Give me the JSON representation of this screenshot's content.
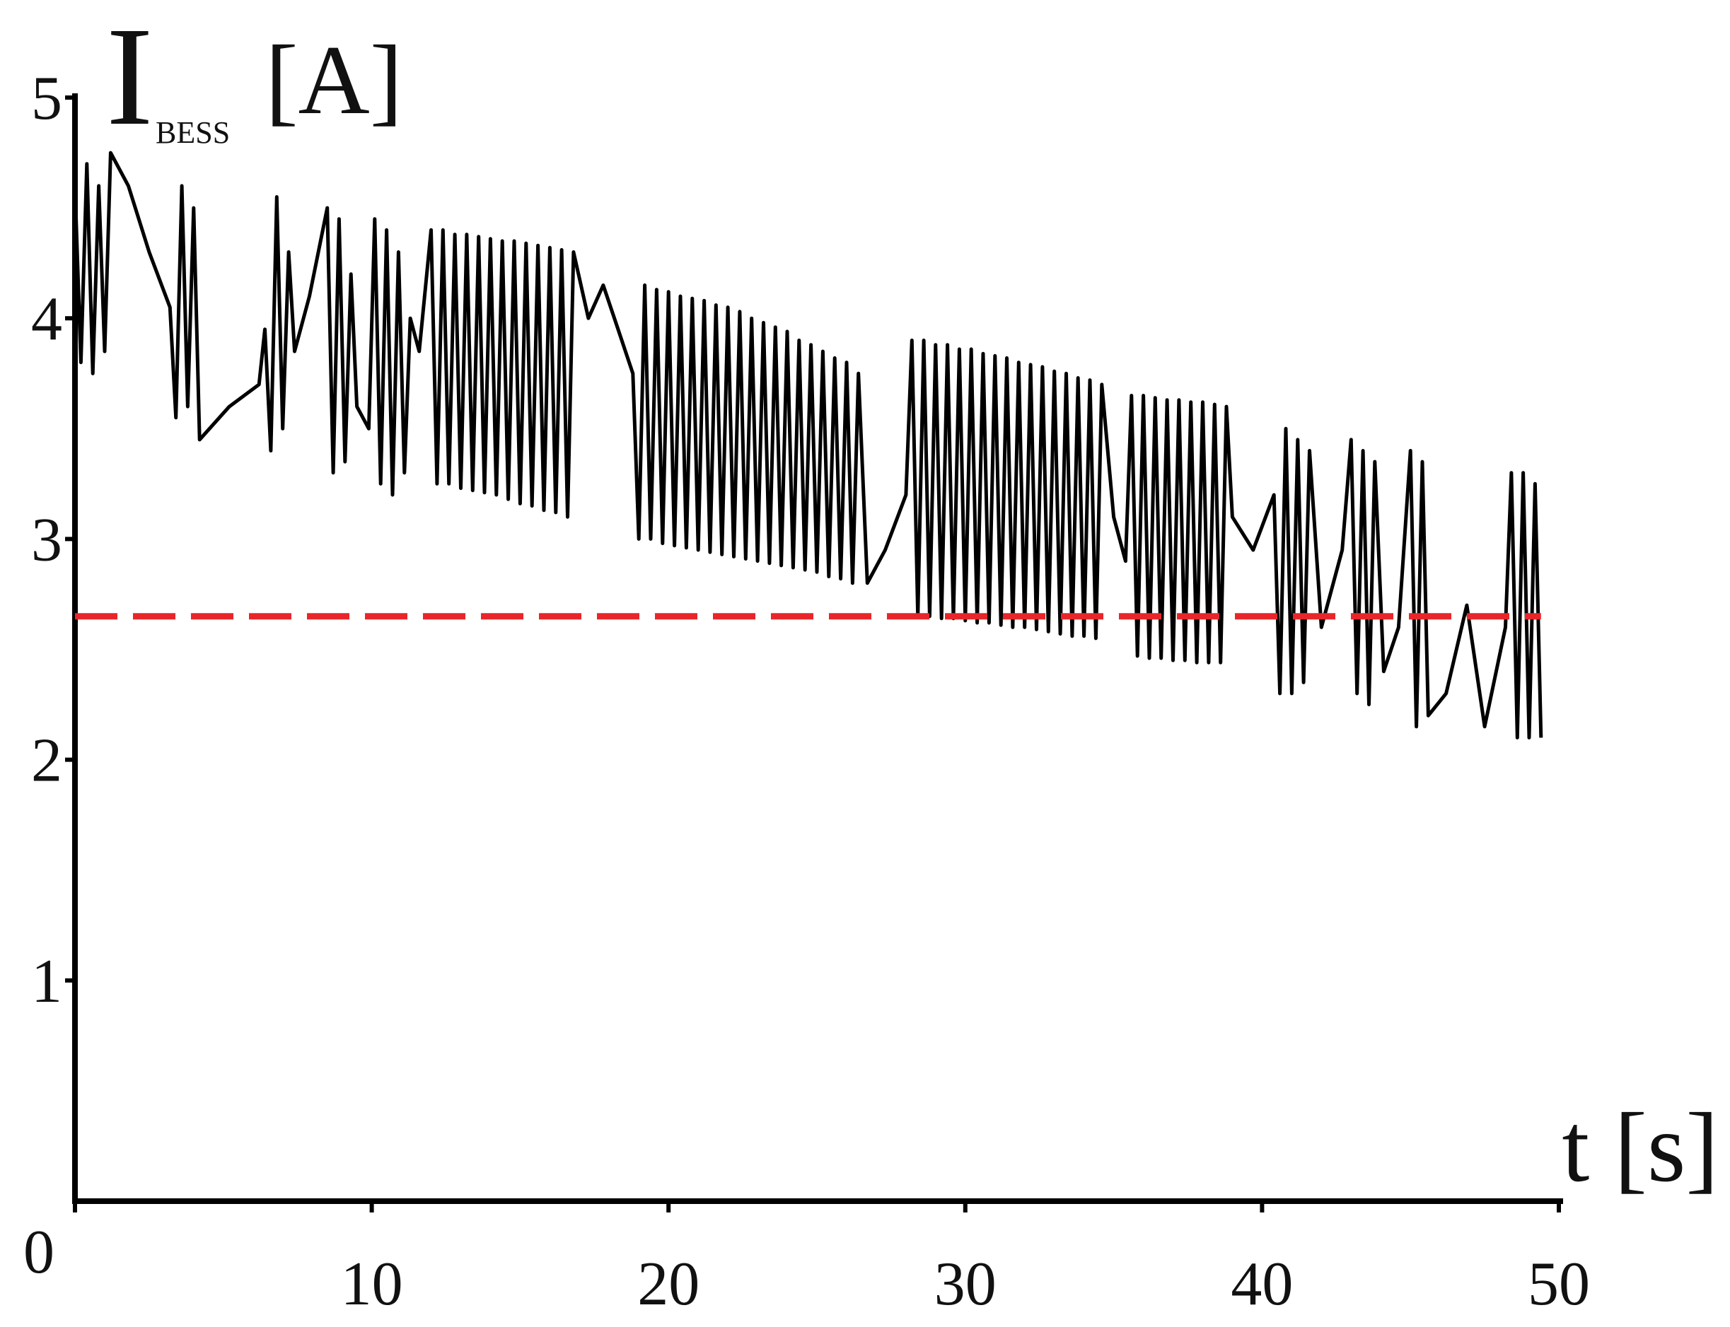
{
  "chart_data": {
    "type": "line",
    "ylabel": {
      "symbol": "I",
      "subscript": "BESS",
      "unit": "[A]"
    },
    "xlabel": "t [s]",
    "xlim": [
      0,
      50
    ],
    "ylim": [
      0,
      5
    ],
    "xticks": [
      0,
      10,
      20,
      30,
      40,
      50
    ],
    "yticks": [
      1,
      2,
      3,
      4,
      5
    ],
    "grid": false,
    "series": [
      {
        "color": "#000000",
        "dashed": false,
        "x": [
          0,
          0.2,
          0.4,
          0.6,
          0.8,
          1.0,
          1.2,
          1.8,
          2.5,
          3.2,
          3.4,
          3.6,
          3.8,
          4.0,
          4.2,
          5.2,
          6.2,
          6.4,
          6.6,
          6.8,
          7.0,
          7.2,
          7.4,
          7.9,
          8.5,
          8.7,
          8.9,
          9.1,
          9.3,
          9.5,
          9.9,
          10.1,
          10.3,
          10.5,
          10.7,
          10.9,
          11.1,
          11.3,
          11.6,
          12.0,
          12.2,
          12.4,
          12.6,
          12.8,
          13.0,
          13.2,
          13.4,
          13.6,
          13.8,
          14.0,
          14.2,
          14.4,
          14.6,
          14.8,
          15.0,
          15.2,
          15.4,
          15.6,
          15.8,
          16.0,
          16.2,
          16.4,
          16.6,
          16.8,
          17.3,
          17.8,
          18.3,
          18.8,
          19.0,
          19.2,
          19.4,
          19.6,
          19.8,
          20.0,
          20.2,
          20.4,
          20.6,
          20.8,
          21.0,
          21.2,
          21.4,
          21.6,
          21.8,
          22.0,
          22.2,
          22.4,
          22.6,
          22.8,
          23.0,
          23.2,
          23.4,
          23.6,
          23.8,
          24.0,
          24.2,
          24.4,
          24.6,
          24.8,
          25.0,
          25.2,
          25.4,
          25.6,
          25.8,
          26.0,
          26.2,
          26.4,
          26.7,
          27.3,
          28.0,
          28.2,
          28.4,
          28.6,
          28.8,
          29.0,
          29.2,
          29.4,
          29.6,
          29.8,
          30.0,
          30.2,
          30.4,
          30.6,
          30.8,
          31.0,
          31.2,
          31.4,
          31.6,
          31.8,
          32.0,
          32.2,
          32.4,
          32.6,
          32.8,
          33.0,
          33.2,
          33.4,
          33.6,
          33.8,
          34.0,
          34.2,
          34.4,
          34.6,
          35.0,
          35.4,
          35.6,
          35.8,
          36.0,
          36.2,
          36.4,
          36.6,
          36.8,
          37.0,
          37.2,
          37.4,
          37.6,
          37.8,
          38.0,
          38.2,
          38.4,
          38.6,
          38.8,
          39.0,
          39.7,
          40.4,
          40.6,
          40.8,
          41.0,
          41.2,
          41.4,
          41.6,
          42.0,
          42.7,
          43.0,
          43.2,
          43.4,
          43.6,
          43.8,
          44.1,
          44.6,
          45.0,
          45.2,
          45.4,
          45.6,
          46.2,
          46.9,
          47.5,
          48.2,
          48.4,
          48.6,
          48.8,
          49.0,
          49.2,
          49.4
        ],
        "values": [
          4.6,
          3.8,
          4.7,
          3.75,
          4.6,
          3.85,
          4.75,
          4.6,
          4.3,
          4.05,
          3.55,
          4.6,
          3.6,
          4.5,
          3.45,
          3.6,
          3.7,
          3.95,
          3.4,
          4.55,
          3.5,
          4.3,
          3.85,
          4.1,
          4.5,
          3.3,
          4.45,
          3.35,
          4.2,
          3.6,
          3.5,
          4.45,
          3.25,
          4.4,
          3.2,
          4.3,
          3.3,
          4.0,
          3.85,
          4.4,
          3.25,
          4.4,
          3.25,
          4.38,
          3.23,
          4.38,
          3.22,
          4.37,
          3.21,
          4.36,
          3.2,
          4.35,
          3.18,
          4.35,
          3.16,
          4.34,
          3.15,
          4.33,
          3.13,
          4.32,
          3.12,
          4.31,
          3.1,
          4.3,
          4.0,
          4.15,
          3.95,
          3.75,
          3.0,
          4.15,
          3.0,
          4.13,
          2.98,
          4.12,
          2.97,
          4.1,
          2.96,
          4.09,
          2.95,
          4.08,
          2.94,
          4.06,
          2.93,
          4.05,
          2.92,
          4.03,
          2.91,
          4.0,
          2.9,
          3.98,
          2.89,
          3.96,
          2.88,
          3.94,
          2.87,
          3.9,
          2.86,
          3.88,
          2.85,
          3.85,
          2.83,
          3.82,
          2.82,
          3.8,
          2.8,
          3.75,
          2.8,
          2.95,
          3.2,
          3.9,
          2.65,
          3.9,
          2.65,
          3.88,
          2.64,
          3.88,
          2.64,
          3.86,
          2.63,
          3.86,
          2.62,
          3.84,
          2.62,
          3.83,
          2.61,
          3.82,
          2.6,
          3.8,
          2.6,
          3.79,
          2.59,
          3.78,
          2.58,
          3.76,
          2.57,
          3.75,
          2.56,
          3.73,
          2.56,
          3.72,
          2.55,
          3.7,
          3.1,
          2.9,
          3.65,
          2.47,
          3.65,
          2.46,
          3.64,
          2.46,
          3.63,
          2.45,
          3.63,
          2.45,
          3.62,
          2.44,
          3.62,
          2.44,
          3.61,
          2.44,
          3.6,
          3.1,
          2.95,
          3.2,
          2.3,
          3.5,
          2.3,
          3.45,
          2.35,
          3.4,
          2.6,
          2.95,
          3.45,
          2.3,
          3.4,
          2.25,
          3.35,
          2.4,
          2.6,
          3.4,
          2.15,
          3.35,
          2.2,
          2.3,
          2.7,
          2.15,
          2.6,
          3.3,
          2.1,
          3.3,
          2.1,
          3.25,
          2.1
        ]
      },
      {
        "color": "#e8262a",
        "dashed": true,
        "x": [
          0,
          49.4
        ],
        "values": [
          2.65,
          2.65
        ]
      }
    ]
  }
}
